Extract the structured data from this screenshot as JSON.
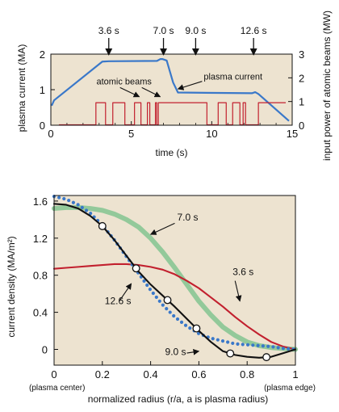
{
  "chart_data": [
    {
      "type": "line",
      "xlabel": "time (s)",
      "ylabel": "plasma current (MA)",
      "y2label": "input power of atomic beams (MW)",
      "xlim": [
        0,
        15
      ],
      "ylim": [
        0,
        2
      ],
      "y2lim": [
        0,
        3
      ],
      "x_ticks": [
        0,
        5,
        10,
        15
      ],
      "y_ticks": [
        0,
        1,
        2
      ],
      "y2_ticks": [
        0,
        1,
        2,
        3
      ],
      "background": "#ede3d0",
      "markers": [
        {
          "t": 3.6,
          "label": "3.6 s"
        },
        {
          "t": 7.0,
          "label": "7.0 s"
        },
        {
          "t": 9.0,
          "label": "9.0 s"
        },
        {
          "t": 12.6,
          "label": "12.6 s"
        }
      ],
      "annotations": [
        {
          "label": "plasma current",
          "text_at": [
            9.5,
            1.28
          ],
          "arrow_to": [
            7.9,
            1.02
          ]
        },
        {
          "label": "atomic beams",
          "text_at": [
            4.55,
            1.15
          ],
          "arrow_to": [
            5.5,
            0.8
          ],
          "arrow2_to": [
            6.8,
            0.8
          ]
        }
      ],
      "series": [
        {
          "name": "plasma current",
          "axis": "left",
          "color": "#3a78c9",
          "x": [
            0.05,
            0.2,
            3.2,
            3.6,
            6.6,
            6.8,
            6.95,
            7.2,
            7.6,
            7.9,
            12.5,
            12.7,
            12.9,
            14.8
          ],
          "y": [
            0.55,
            0.7,
            1.79,
            1.8,
            1.81,
            1.86,
            1.86,
            1.82,
            1.2,
            0.92,
            0.9,
            0.93,
            0.88,
            0.12
          ]
        },
        {
          "name": "atomic beams",
          "axis": "right",
          "color": "#c2202e",
          "x": [
            0.5,
            2.8,
            2.8,
            3.4,
            3.4,
            3.85,
            3.85,
            4.6,
            4.6,
            5.2,
            5.2,
            5.6,
            5.6,
            6.0,
            6.0,
            6.15,
            6.15,
            6.5,
            6.5,
            6.58,
            6.58,
            6.68,
            6.68,
            9.7,
            9.7,
            10.4,
            10.4,
            10.9,
            10.9,
            11.3,
            11.3,
            11.75,
            11.75,
            11.95,
            11.95,
            12.1,
            12.1,
            12.9,
            12.9,
            14.6
          ],
          "y": [
            0.02,
            0.02,
            0.95,
            0.95,
            0.02,
            0.02,
            0.95,
            0.95,
            0.02,
            0.02,
            0.95,
            0.95,
            0.02,
            0.02,
            0.95,
            0.95,
            0.02,
            0.02,
            0.95,
            0.95,
            0.02,
            0.02,
            0.95,
            0.95,
            0.02,
            0.02,
            0.95,
            0.95,
            0.02,
            0.02,
            0.95,
            0.95,
            0.02,
            0.02,
            0.95,
            0.95,
            0.02,
            0.02,
            0.95,
            0.95
          ]
        }
      ]
    },
    {
      "type": "line",
      "xlabel": "normalized radius (r/a, a is plasma radius)",
      "ylabel": "current density (MA/m²)",
      "xlim": [
        0,
        1
      ],
      "ylim": [
        -0.17,
        1.66
      ],
      "x_ticks": [
        0,
        0.2,
        0.4,
        0.6,
        0.8,
        1
      ],
      "y_ticks": [
        0,
        0.4,
        0.8,
        1.2,
        1.6
      ],
      "y_tick_labels": [
        "0",
        "0.4",
        "0.8",
        "1.2",
        "1.6"
      ],
      "x_edge_labels": [
        "(plasma center)",
        "(plasma edge)"
      ],
      "background": "#ede3d0",
      "series": [
        {
          "name": "7.0 s",
          "color": "#93c99a",
          "style": "thick",
          "x": [
            0,
            0.05,
            0.1,
            0.15,
            0.2,
            0.25,
            0.3,
            0.35,
            0.4,
            0.45,
            0.5,
            0.55,
            0.6,
            0.65,
            0.7,
            0.75,
            0.8,
            0.85,
            0.9,
            0.95,
            1.0
          ],
          "y": [
            1.52,
            1.53,
            1.53,
            1.52,
            1.5,
            1.46,
            1.4,
            1.32,
            1.2,
            1.05,
            0.88,
            0.7,
            0.52,
            0.37,
            0.24,
            0.15,
            0.08,
            0.04,
            0.02,
            0.01,
            0.0
          ]
        },
        {
          "name": "3.6 s",
          "color": "#c2202e",
          "style": "solid",
          "x": [
            0,
            0.05,
            0.1,
            0.15,
            0.2,
            0.25,
            0.3,
            0.35,
            0.4,
            0.45,
            0.5,
            0.55,
            0.6,
            0.65,
            0.7,
            0.75,
            0.8,
            0.85,
            0.9,
            0.95,
            1.0
          ],
          "y": [
            0.87,
            0.88,
            0.89,
            0.9,
            0.91,
            0.92,
            0.92,
            0.91,
            0.89,
            0.86,
            0.81,
            0.74,
            0.66,
            0.56,
            0.46,
            0.35,
            0.25,
            0.16,
            0.08,
            0.03,
            0.0
          ]
        },
        {
          "name": "12.6 s",
          "color": "#3a78c9",
          "style": "dotted",
          "x": [
            0,
            0.05,
            0.1,
            0.15,
            0.2,
            0.25,
            0.3,
            0.35,
            0.4,
            0.45,
            0.5,
            0.55,
            0.6,
            0.65,
            0.7,
            0.75,
            0.8,
            0.85,
            0.9,
            0.95,
            1.0
          ],
          "y": [
            1.65,
            1.62,
            1.56,
            1.47,
            1.34,
            1.18,
            1.0,
            0.82,
            0.64,
            0.48,
            0.35,
            0.25,
            0.17,
            0.12,
            0.09,
            0.06,
            0.05,
            0.04,
            0.03,
            0.01,
            0.0
          ]
        },
        {
          "name": "9.0 s",
          "color": "#111111",
          "style": "solid",
          "circles": true,
          "x": [
            0,
            0.05,
            0.1,
            0.15,
            0.2,
            0.25,
            0.3,
            0.35,
            0.4,
            0.45,
            0.5,
            0.55,
            0.6,
            0.65,
            0.7,
            0.75,
            0.8,
            0.85,
            0.9,
            0.95,
            1.0
          ],
          "y": [
            1.57,
            1.56,
            1.52,
            1.44,
            1.33,
            1.18,
            1.01,
            0.84,
            0.7,
            0.58,
            0.46,
            0.33,
            0.2,
            0.08,
            -0.02,
            -0.06,
            -0.08,
            -0.09,
            -0.08,
            -0.04,
            0.0
          ],
          "circle_x": [
            0.2,
            0.34,
            0.47,
            0.59,
            0.73,
            0.88
          ]
        }
      ],
      "labels": [
        {
          "text": "7.0 s",
          "at": [
            0.51,
            1.39
          ],
          "arrow_to": [
            0.4,
            1.24
          ]
        },
        {
          "text": "3.6 s",
          "at": [
            0.74,
            0.8
          ],
          "arrow_to": [
            0.77,
            0.52
          ]
        },
        {
          "text": "12.6 s",
          "at": [
            0.21,
            0.49
          ],
          "arrow_to": [
            0.32,
            0.71
          ]
        },
        {
          "text": "9.0 s",
          "at": [
            0.46,
            -0.06
          ],
          "arrow_to": [
            0.6,
            -0.02
          ]
        }
      ]
    }
  ]
}
